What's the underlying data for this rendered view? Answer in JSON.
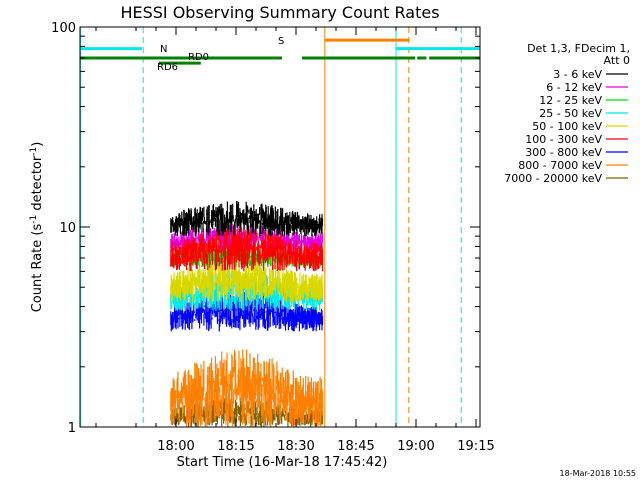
{
  "chart_data": {
    "type": "line",
    "title": "HESSI Observing Summary Count Rates",
    "xlabel": "Start Time (16-Mar-18 17:45:42)",
    "ylabel": "Count Rate (s",
    "ylabel_sup": "-1",
    "ylabel_mid": " detector",
    "ylabel_sup2": "-1",
    "ylabel_end": ")",
    "footer": "18-Mar-2018 10:55",
    "xlim_minutes": [
      -9,
      91
    ],
    "ylim": [
      1,
      100
    ],
    "yscale": "log",
    "x_ticks": [
      {
        "minute": 15,
        "label": "18:00"
      },
      {
        "minute": 30,
        "label": "18:15"
      },
      {
        "minute": 45,
        "label": "18:30"
      },
      {
        "minute": 60,
        "label": "18:45"
      },
      {
        "minute": 75,
        "label": "19:00"
      },
      {
        "minute": 90,
        "label": "19:15"
      }
    ],
    "y_ticks": [
      {
        "value": 1,
        "label": "1"
      },
      {
        "value": 10,
        "label": "10"
      },
      {
        "value": 100,
        "label": "100"
      }
    ],
    "legend_header": [
      "Det 1,3, FDecim 1,",
      "Att 0"
    ],
    "series": [
      {
        "name": "3 - 6 keV",
        "color": "#000000",
        "values_range": [
          9.0,
          13.5
        ]
      },
      {
        "name": "6 - 12 keV",
        "color": "#e000e0",
        "values_range": [
          7.5,
          10.5
        ]
      },
      {
        "name": "12 - 25 keV",
        "color": "#00e000",
        "values_range": [
          6.3,
          8.0
        ]
      },
      {
        "name": "25 - 50 keV",
        "color": "#00e8e8",
        "values_range": [
          3.8,
          6.0
        ]
      },
      {
        "name": "50 - 100 keV",
        "color": "#d8d800",
        "values_range": [
          4.2,
          7.0
        ]
      },
      {
        "name": "100 - 300 keV",
        "color": "#ff0000",
        "values_range": [
          6.0,
          10.0
        ]
      },
      {
        "name": "300 - 800 keV",
        "color": "#0000ff",
        "values_range": [
          3.0,
          4.8
        ]
      },
      {
        "name": "800 - 7000 keV",
        "color": "#ff8000",
        "values_range": [
          1.0,
          2.5
        ]
      },
      {
        "name": "7000 - 20000 keV",
        "color": "#806000",
        "values_range": [
          1.0,
          1.4
        ]
      }
    ],
    "data_interval_minutes": [
      13.7,
      51.7
    ],
    "flags": [
      {
        "label": "N",
        "color": "#00e8e8",
        "level": 78,
        "segments": [
          [
            -9,
            6.5
          ],
          [
            70,
            91
          ]
        ]
      },
      {
        "label": "S",
        "color": "#ff8000",
        "level": 86,
        "segments": [
          [
            52.2,
            73.2
          ]
        ]
      },
      {
        "label": "RD0",
        "color": "#008000",
        "level": 70,
        "segments": [
          [
            -9,
            41.5
          ],
          [
            46.5,
            74.8
          ],
          [
            75.3,
            77.6
          ],
          [
            78.3,
            91
          ]
        ]
      },
      {
        "label": "RD6",
        "color": "#008000",
        "level": 66,
        "segments": [
          [
            10.7,
            21.2
          ]
        ]
      }
    ],
    "vlines": [
      {
        "minute": -8.9,
        "color": "#00e8e8",
        "style": "solid"
      },
      {
        "minute": 6.8,
        "color": "#00e8e8",
        "style": "dashed"
      },
      {
        "minute": 52.2,
        "color": "#ff8000",
        "style": "solid"
      },
      {
        "minute": 70.0,
        "color": "#00e8e8",
        "style": "solid"
      },
      {
        "minute": 73.2,
        "color": "#ff8000",
        "style": "dashed"
      },
      {
        "minute": 86.3,
        "color": "#00e8e8",
        "style": "dashed"
      }
    ]
  }
}
